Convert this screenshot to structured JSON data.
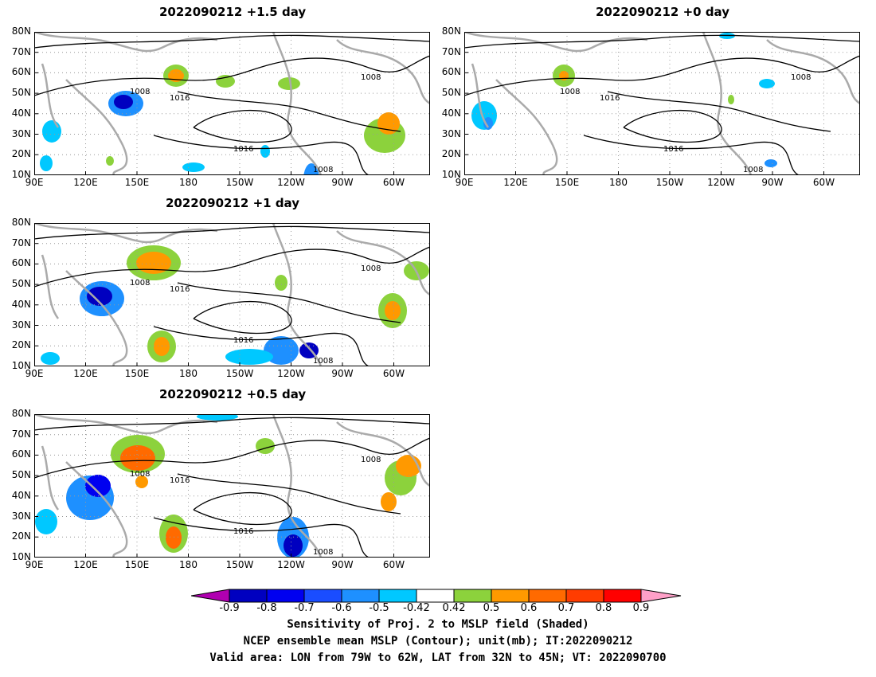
{
  "panels": [
    {
      "id": "p15",
      "title": "2022090212 +1.5 day"
    },
    {
      "id": "p00",
      "title": "2022090212 +0 day"
    },
    {
      "id": "p10",
      "title": "2022090212 +1 day"
    },
    {
      "id": "p05",
      "title": "2022090212 +0.5 day"
    }
  ],
  "lat_labels": [
    "80N",
    "70N",
    "60N",
    "50N",
    "40N",
    "30N",
    "20N",
    "10N"
  ],
  "lon_labels": [
    "90E",
    "120E",
    "150E",
    "180",
    "150W",
    "120W",
    "90W",
    "60W"
  ],
  "contour_label_1008": "1008",
  "contour_label_1016": "1016",
  "colorbar": {
    "colors": [
      "#b000b0",
      "#0000c0",
      "#0000f0",
      "#1a4dff",
      "#1e90ff",
      "#00c8ff",
      "#ffffff",
      "#8cd23c",
      "#ff9900",
      "#ff6a00",
      "#ff3c00",
      "#ff0000",
      "#ffa0c8"
    ],
    "tick_labels": [
      "-0.9",
      "-0.8",
      "-0.7",
      "-0.6",
      "-0.5",
      "-0.42",
      "0.42",
      "0.5",
      "0.6",
      "0.7",
      "0.8",
      "0.9"
    ]
  },
  "footer": {
    "line1": "Sensitivity of Proj. 2 to MSLP field (Shaded)",
    "line2": "NCEP ensemble mean MSLP (Contour); unit(mb); IT:2022090212",
    "line3": "Valid area: LON from 79W to 62W, LAT from 32N to 45N; VT: 2022090700"
  }
}
